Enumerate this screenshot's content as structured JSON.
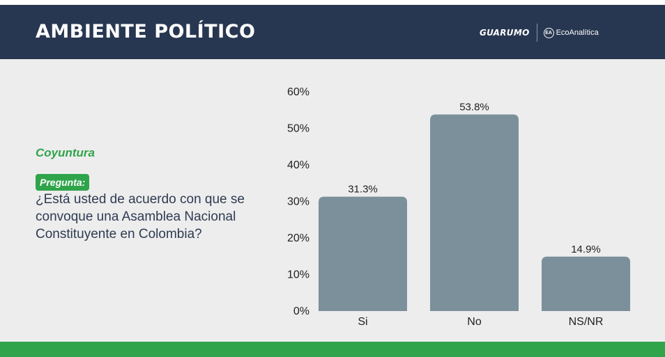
{
  "header": {
    "title": "AMBIENTE POLÍTICO",
    "brand_left": "GUARUMO",
    "brand_right": "EcoAnalítica",
    "brand_right_icon_text": "EA"
  },
  "topic": "Coyuntura",
  "question_label": "Pregunta:",
  "question": "¿Está usted de acuerdo con que se convoque una Asamblea Nacional Constituyente en Colombia?",
  "colors": {
    "header_bg": "#283751",
    "accent_green": "#2fa44a",
    "bar": "#7b909b",
    "background": "#ededed"
  },
  "chart_data": {
    "type": "bar",
    "categories": [
      "Si",
      "No",
      "NS/NR"
    ],
    "values": [
      31.3,
      53.8,
      14.9
    ],
    "value_labels": [
      "31.3%",
      "53.8%",
      "14.9%"
    ],
    "y_ticks": [
      "0%",
      "10%",
      "20%",
      "30%",
      "40%",
      "50%",
      "60%"
    ],
    "ylim": [
      0,
      60
    ],
    "grid": false,
    "legend": "none"
  }
}
